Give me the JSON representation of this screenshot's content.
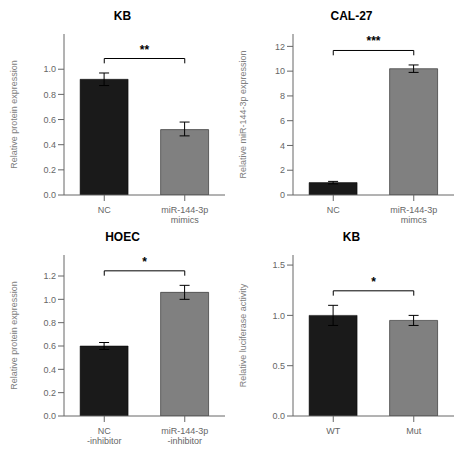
{
  "chart_data": [
    {
      "type": "bar",
      "title": "KB",
      "categories": [
        "NC",
        "miR-144-3p\nmimics"
      ],
      "values": [
        0.92,
        0.52
      ],
      "colors": [
        "#1a1a1a",
        "#808080"
      ],
      "ylabel": "Relative protein expression",
      "ylim": [
        0,
        1.28
      ],
      "yticks": [
        {
          "value": 0,
          "label": "0.0"
        },
        0.2,
        0.4,
        0.6,
        0.8,
        {
          "value": 1,
          "label": "1.0"
        }
      ],
      "errors_minus": [
        0.05,
        0.05
      ],
      "errors_plus": [
        0.05,
        0.06
      ],
      "annotations": [
        "**"
      ],
      "grid": false
    },
    {
      "type": "bar",
      "title": "CAL-27",
      "categories": [
        "NC",
        "miR-144-3p\nmimcs"
      ],
      "values": [
        1.0,
        10.2
      ],
      "colors": [
        "#1a1a1a",
        "#808080"
      ],
      "ylabel": "Relative miR-144-3p expression",
      "ylim": [
        0,
        13
      ],
      "yticks": [
        0,
        2,
        4,
        6,
        8,
        10,
        12
      ],
      "errors_minus": [
        0.1,
        0.3
      ],
      "errors_plus": [
        0.1,
        0.3
      ],
      "annotations": [
        "***"
      ],
      "grid": false
    },
    {
      "type": "bar",
      "title": "HOEC",
      "categories": [
        "NC\n-inhibitor",
        "miR-144-3p\n-inhibitor"
      ],
      "values": [
        0.6,
        1.06
      ],
      "colors": [
        "#1a1a1a",
        "#808080"
      ],
      "ylabel": "Relative protein expression",
      "ylim": [
        0,
        1.38
      ],
      "yticks": [
        {
          "value": 0,
          "label": "0.0"
        },
        0.2,
        0.4,
        0.6,
        0.8,
        {
          "value": 1,
          "label": "1.0"
        },
        1.2
      ],
      "errors_minus": [
        0.03,
        0.06
      ],
      "errors_plus": [
        0.03,
        0.06
      ],
      "annotations": [
        "*"
      ],
      "grid": false
    },
    {
      "type": "bar",
      "title": "KB",
      "categories": [
        "WT",
        "Mut"
      ],
      "values": [
        1.0,
        0.95
      ],
      "colors": [
        "#1a1a1a",
        "#808080"
      ],
      "ylabel": "Relative luciferase activity",
      "ylim": [
        0,
        1.6
      ],
      "yticks": [
        {
          "value": 0,
          "label": "0.0"
        },
        0.5,
        {
          "value": 1,
          "label": "1.0"
        },
        1.5
      ],
      "errors_minus": [
        0.1,
        0.05
      ],
      "errors_plus": [
        0.1,
        0.05
      ],
      "annotations": [
        "*"
      ],
      "grid": false
    }
  ]
}
